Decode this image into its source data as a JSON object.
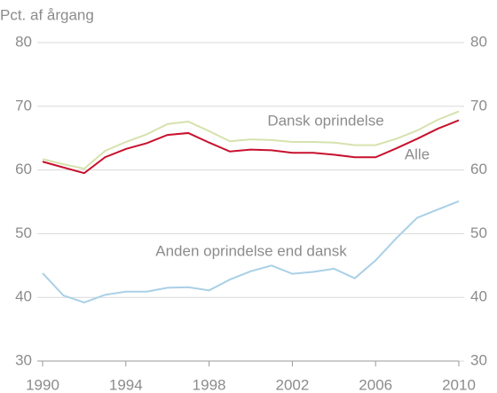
{
  "chart_data": {
    "type": "line",
    "y_axis_label": "Pct. af årgang",
    "x": [
      1990,
      1991,
      1992,
      1993,
      1994,
      1995,
      1996,
      1997,
      1998,
      1999,
      2000,
      2001,
      2002,
      2003,
      2004,
      2005,
      2006,
      2007,
      2008,
      2009,
      2010
    ],
    "xlim": [
      1990,
      2010
    ],
    "xticks": [
      1990,
      1994,
      1998,
      2002,
      2006,
      2010
    ],
    "ylim": [
      30,
      80
    ],
    "yticks": [
      30,
      40,
      50,
      60,
      70,
      80
    ],
    "y2lim": [
      30,
      80
    ],
    "y2ticks": [
      30,
      40,
      50,
      60,
      70,
      80
    ],
    "grid": true,
    "series": [
      {
        "name": "Dansk oprindelse",
        "color": "#d6e2ad",
        "values": [
          61.7,
          60.9,
          60.2,
          63.0,
          64.4,
          65.6,
          67.2,
          67.6,
          66.1,
          64.5,
          64.8,
          64.7,
          64.4,
          64.4,
          64.3,
          63.9,
          63.9,
          64.9,
          66.2,
          67.9,
          69.2
        ]
      },
      {
        "name": "Alle",
        "color": "#c8102e",
        "values": [
          61.3,
          60.4,
          59.5,
          62.0,
          63.3,
          64.2,
          65.5,
          65.8,
          64.3,
          62.9,
          63.2,
          63.1,
          62.7,
          62.7,
          62.4,
          62.0,
          62.0,
          63.4,
          64.9,
          66.5,
          67.8
        ]
      },
      {
        "name": "Anden oprindelse end dansk",
        "color": "#a9d0e6",
        "values": [
          43.8,
          40.3,
          39.2,
          40.4,
          40.9,
          40.9,
          41.5,
          41.6,
          41.1,
          42.8,
          44.1,
          45.0,
          43.7,
          44.0,
          44.5,
          43.0,
          45.8,
          49.3,
          52.5,
          53.8,
          55.1
        ]
      }
    ]
  }
}
